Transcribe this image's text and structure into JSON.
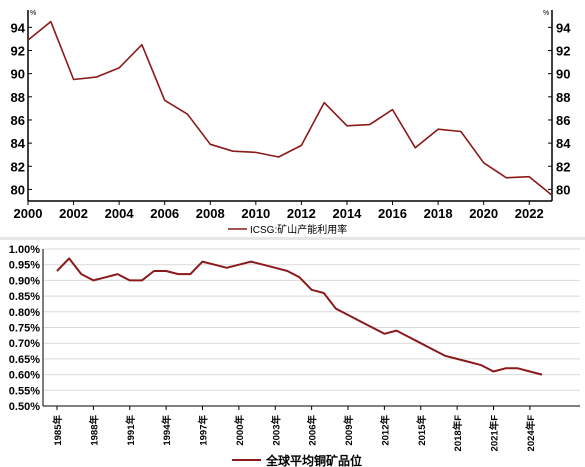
{
  "colors": {
    "line": "#8b1a1a",
    "axis": "#000000",
    "grid": "#d9d9d9",
    "separator": "#e6e6e6"
  },
  "chart_data": [
    {
      "type": "line",
      "title": "",
      "unit_left": "%",
      "unit_right": "%",
      "xlabel": "",
      "ylabel": "",
      "xlim": [
        2000,
        2023
      ],
      "ylim": [
        79,
        95.5
      ],
      "x_ticks": [
        "2000",
        "2002",
        "2004",
        "2006",
        "2008",
        "2010",
        "2012",
        "2014",
        "2016",
        "2018",
        "2020",
        "2022"
      ],
      "y_ticks": [
        "80",
        "82",
        "84",
        "86",
        "88",
        "90",
        "92",
        "94"
      ],
      "grid": false,
      "legend_position": "bottom-center",
      "series": [
        {
          "name": "ICSG:矿山产能利用率",
          "x": [
            2000,
            2001,
            2002,
            2003,
            2004,
            2005,
            2006,
            2007,
            2008,
            2009,
            2010,
            2011,
            2012,
            2013,
            2014,
            2015,
            2016,
            2017,
            2018,
            2019,
            2020,
            2021,
            2022,
            2023
          ],
          "values": [
            92.9,
            94.5,
            89.5,
            89.7,
            90.5,
            92.5,
            87.7,
            86.5,
            83.9,
            83.3,
            83.2,
            82.8,
            83.8,
            87.5,
            85.5,
            85.6,
            86.9,
            83.6,
            85.2,
            85.0,
            82.3,
            81.0,
            81.1,
            79.5
          ]
        }
      ]
    },
    {
      "type": "line",
      "title": "",
      "xlabel": "",
      "ylabel": "",
      "ylim": [
        0.5,
        1.0
      ],
      "y_ticks": [
        "0.50%",
        "0.55%",
        "0.60%",
        "0.65%",
        "0.70%",
        "0.75%",
        "0.80%",
        "0.85%",
        "0.90%",
        "0.95%",
        "1.00%"
      ],
      "x_ticks": [
        "1985年",
        "1988年",
        "1991年",
        "1994年",
        "1997年",
        "2000年",
        "2003年",
        "2006年",
        "2009年",
        "2012年",
        "2015年",
        "2018年F",
        "2021年F",
        "2024年F"
      ],
      "grid": true,
      "legend_position": "bottom-center",
      "series": [
        {
          "name": "全球平均铜矿品位",
          "x": [
            "1985年",
            "1986年",
            "1987年",
            "1988年",
            "1989年",
            "1990年",
            "1991年",
            "1992年",
            "1993年",
            "1994年",
            "1995年",
            "1996年",
            "1997年",
            "1998年",
            "1999年",
            "2000年",
            "2001年",
            "2002年",
            "2003年",
            "2004年",
            "2005年",
            "2006年",
            "2007年",
            "2008年",
            "2009年",
            "2010年",
            "2011年",
            "2012年",
            "2013年",
            "2014年",
            "2015年",
            "2016年",
            "2017年",
            "2018年F",
            "2019年F",
            "2020年F",
            "2021年F",
            "2022年F",
            "2023年F",
            "2024年F",
            "2025年F"
          ],
          "values": [
            0.93,
            0.97,
            0.92,
            0.9,
            0.91,
            0.92,
            0.9,
            0.9,
            0.93,
            0.93,
            0.92,
            0.92,
            0.96,
            0.95,
            0.94,
            0.95,
            0.96,
            0.95,
            0.94,
            0.93,
            0.91,
            0.87,
            0.86,
            0.81,
            0.79,
            0.77,
            0.75,
            0.73,
            0.74,
            0.72,
            0.7,
            0.68,
            0.66,
            0.65,
            0.64,
            0.63,
            0.61,
            0.62,
            0.62,
            0.61,
            0.6
          ]
        }
      ]
    }
  ]
}
